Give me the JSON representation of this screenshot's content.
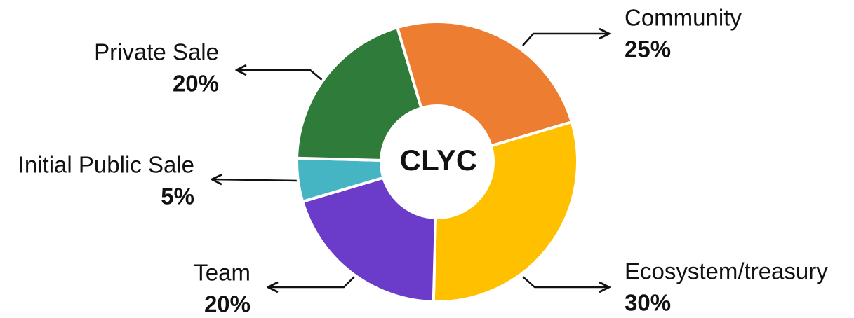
{
  "chart_data": {
    "type": "pie",
    "donut": true,
    "center_label": "CLYC",
    "categories": [
      "Community",
      "Ecosystem/treasury",
      "Team",
      "Initial Public Sale",
      "Private Sale"
    ],
    "values": [
      25,
      30,
      20,
      5,
      20
    ],
    "value_labels": [
      "25%",
      "30%",
      "20%",
      "5%",
      "20%"
    ],
    "colors": [
      "#ED7D31",
      "#FFC000",
      "#6A3CC9",
      "#45B5C4",
      "#2E7B3A"
    ]
  }
}
